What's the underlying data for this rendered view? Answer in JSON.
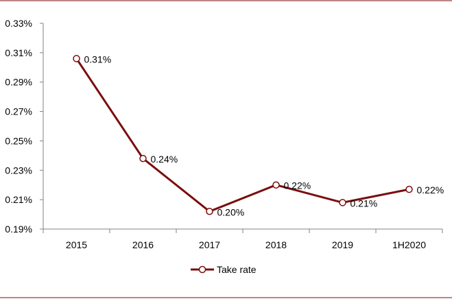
{
  "chart_data": {
    "type": "line",
    "title": "",
    "xlabel": "",
    "ylabel": "",
    "categories": [
      "2015",
      "2016",
      "2017",
      "2018",
      "2019",
      "1H2020"
    ],
    "series": [
      {
        "name": "Take rate",
        "values": [
          0.306,
          0.238,
          0.202,
          0.22,
          0.208,
          0.217
        ],
        "labels": [
          "0.31%",
          "0.24%",
          "0.20%",
          "0.22%",
          "0.21%",
          "0.22%"
        ],
        "color": "#7b0d0d"
      }
    ],
    "ylim": [
      0.19,
      0.33
    ],
    "yticks": [
      0.19,
      0.21,
      0.23,
      0.25,
      0.27,
      0.29,
      0.31,
      0.33
    ],
    "ytick_labels": [
      "0.19%",
      "0.21%",
      "0.23%",
      "0.25%",
      "0.27%",
      "0.29%",
      "0.31%",
      "0.33%"
    ],
    "grid": false,
    "legend_position": "bottom-center",
    "frame_color": "#7b0d0d"
  }
}
